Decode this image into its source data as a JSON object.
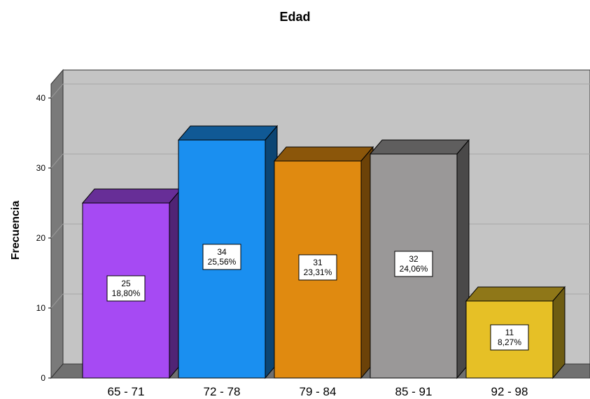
{
  "chart_data": {
    "type": "bar",
    "title": "Edad",
    "xlabel": "",
    "ylabel": "Frecuencia",
    "ylim": [
      0,
      40
    ],
    "yticks": [
      0,
      10,
      20,
      30,
      40
    ],
    "categories": [
      "65 - 71",
      "72 - 78",
      "79 - 84",
      "85 - 91",
      "92 - 98"
    ],
    "values": [
      25,
      34,
      31,
      32,
      11
    ],
    "percent_labels": [
      "18,80%",
      "25,56%",
      "23,31%",
      "24,06%",
      "8,27%"
    ],
    "colors": [
      "#a64af3",
      "#1a8ff0",
      "#e08a10",
      "#9a9898",
      "#e6c026"
    ],
    "grid": true,
    "legend": "none"
  }
}
